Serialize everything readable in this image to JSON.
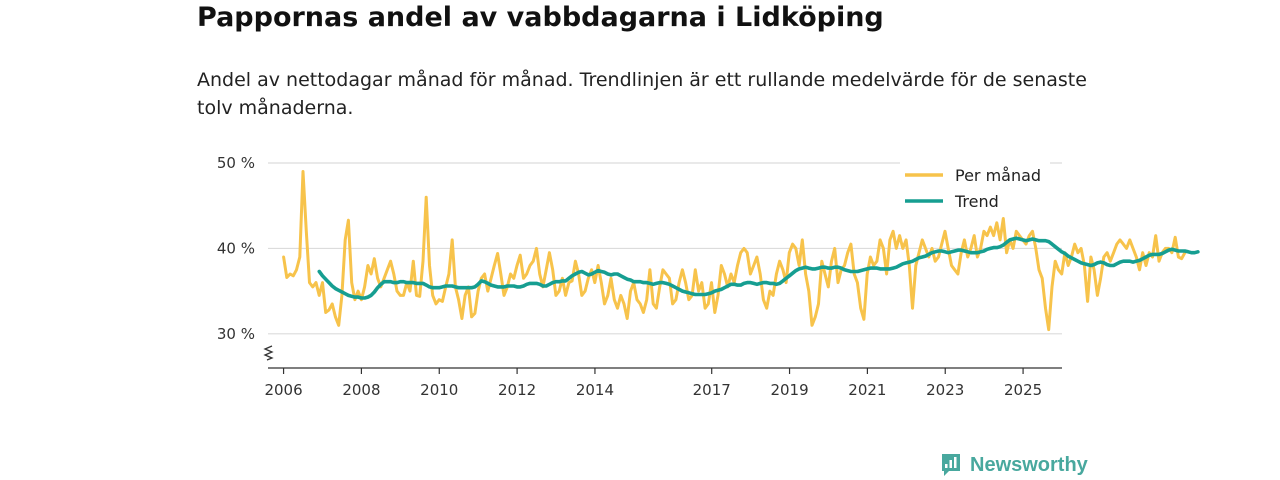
{
  "title": "Pappornas andel av vabbdagarna i Lidköping",
  "subtitle": "Andel av nettodagar månad för månad. Trendlinjen är ett rullande medelvärde för de senaste tolv månaderna.",
  "brand": {
    "name": "Newsworthy",
    "color": "#48a89e"
  },
  "colors": {
    "monthly": "#f7c34b",
    "trend": "#169e91",
    "grid": "#dcdcdc",
    "axis": "#333333"
  },
  "chart_data": {
    "type": "line",
    "title": "Pappornas andel av vabbdagarna i Lidköping",
    "xlabel": "",
    "ylabel": "",
    "xlim": [
      2005.6,
      2026.0
    ],
    "ylim": [
      26,
      50
    ],
    "y_ticks": [
      30,
      40,
      50
    ],
    "y_tick_labels": [
      "30 %",
      "40 %",
      "50 %"
    ],
    "x_ticks": [
      2006,
      2008,
      2010,
      2012,
      2014,
      2017,
      2019,
      2021,
      2023,
      2025
    ],
    "x_tick_labels": [
      "2006",
      "2008",
      "2010",
      "2012",
      "2014",
      "2017",
      "2019",
      "2021",
      "2023",
      "2025"
    ],
    "legend_position": "top-right",
    "series": [
      {
        "name": "Per månad",
        "x_start": 2006.0,
        "x_step": 0.0833,
        "values": [
          39,
          36.6,
          37,
          36.8,
          37.5,
          39,
          49,
          42,
          36,
          35.5,
          36,
          34.5,
          36,
          32.5,
          32.8,
          33.5,
          32,
          31,
          34.5,
          41,
          43.3,
          36,
          34,
          35,
          34,
          35.5,
          38,
          37,
          38.8,
          36.5,
          35.5,
          36.5,
          37.5,
          38.5,
          37,
          35,
          34.5,
          34.5,
          36,
          35,
          38.5,
          34.5,
          34.4,
          38.5,
          46,
          38,
          34.5,
          33.5,
          34,
          33.8,
          35.5,
          37,
          41,
          35.5,
          34,
          31.8,
          34.5,
          35.5,
          32,
          32.4,
          35,
          36.5,
          37,
          35,
          36.5,
          38,
          39.4,
          37,
          34.5,
          35.5,
          37,
          36.5,
          38,
          39.2,
          36.5,
          37,
          38,
          38.5,
          40,
          37,
          35.5,
          37.5,
          39.5,
          37.5,
          34.5,
          35,
          36.5,
          34.5,
          36,
          36.2,
          38.5,
          37,
          34.5,
          35,
          36.5,
          37.5,
          36,
          38,
          36,
          33.5,
          34.5,
          36.5,
          34,
          33,
          34.5,
          33.5,
          31.8,
          35,
          36,
          34,
          33.5,
          32.5,
          34,
          37.5,
          33.5,
          33,
          35.5,
          37.5,
          37,
          36.5,
          33.5,
          34,
          36,
          37.5,
          36,
          34,
          34.5,
          37.5,
          35,
          36,
          33,
          33.5,
          36,
          32.5,
          34.5,
          38,
          37,
          35.5,
          37,
          36,
          38,
          39.5,
          40,
          39.5,
          37,
          38,
          39,
          37,
          34,
          33,
          35,
          34.5,
          37,
          38.5,
          37.5,
          36,
          39.5,
          40.5,
          40,
          38,
          41,
          37,
          35,
          31,
          32,
          33.5,
          38.5,
          37,
          35.5,
          38.5,
          40,
          36,
          37.5,
          38,
          39.5,
          40.5,
          37,
          36,
          33,
          31.7,
          37,
          39,
          38,
          38.5,
          41,
          40,
          37,
          41,
          42,
          40,
          41.5,
          40,
          41,
          38,
          33,
          38,
          39.5,
          41,
          40,
          39,
          40,
          38.5,
          39,
          40.5,
          42,
          40,
          38,
          37.5,
          37,
          39.5,
          41,
          39,
          40,
          41.5,
          39,
          40,
          42,
          41.5,
          42.5,
          41.5,
          43,
          41,
          43.5,
          39.5,
          41,
          40,
          42,
          41.5,
          41,
          40.5,
          41.5,
          42,
          40,
          37.5,
          36.5,
          33,
          30.5,
          35.5,
          38.5,
          37.5,
          37,
          39.5,
          38,
          39,
          40.5,
          39.5,
          40,
          38,
          33.8,
          39,
          37.5,
          34.5,
          36.5,
          39,
          39.5,
          38.5,
          39.5,
          40.5,
          41,
          40.5,
          40,
          41,
          40,
          39,
          37.5,
          39.5,
          38,
          39.5,
          39,
          41.5,
          38.5,
          39.5,
          40,
          40,
          39.5,
          41.3,
          39,
          38.8,
          39.5
        ]
      },
      {
        "name": "Trend",
        "x_start": 2006.917,
        "x_step": 0.0833,
        "values": [
          37.3,
          36.8,
          36.4,
          36,
          35.6,
          35.3,
          35.1,
          34.9,
          34.7,
          34.5,
          34.4,
          34.3,
          34.3,
          34.2,
          34.2,
          34.3,
          34.5,
          34.9,
          35.4,
          35.8,
          36.1,
          36.1,
          36.1,
          36,
          36,
          36.1,
          36.1,
          36,
          36,
          36,
          35.9,
          35.9,
          35.9,
          35.7,
          35.5,
          35.4,
          35.4,
          35.4,
          35.5,
          35.6,
          35.6,
          35.6,
          35.5,
          35.4,
          35.4,
          35.4,
          35.4,
          35.4,
          35.5,
          35.8,
          36.2,
          36.1,
          35.9,
          35.7,
          35.6,
          35.5,
          35.5,
          35.5,
          35.6,
          35.6,
          35.6,
          35.5,
          35.5,
          35.6,
          35.8,
          35.9,
          35.9,
          35.9,
          35.8,
          35.6,
          35.6,
          35.8,
          36,
          36.1,
          36.1,
          36.2,
          36.2,
          36.5,
          36.8,
          37,
          37.2,
          37.3,
          37.1,
          36.9,
          37,
          37.2,
          37.4,
          37.3,
          37.2,
          37,
          36.9,
          37,
          37,
          36.8,
          36.6,
          36.4,
          36.3,
          36.1,
          36.1,
          36.1,
          36,
          36,
          35.9,
          35.8,
          35.9,
          36,
          36,
          35.9,
          35.8,
          35.6,
          35.4,
          35.2,
          35,
          34.9,
          34.8,
          34.7,
          34.6,
          34.6,
          34.6,
          34.6,
          34.7,
          34.8,
          35,
          35.1,
          35.2,
          35.4,
          35.6,
          35.8,
          35.8,
          35.7,
          35.7,
          35.9,
          36,
          36,
          35.9,
          35.8,
          35.9,
          36,
          36,
          35.9,
          35.9,
          35.8,
          35.9,
          36.2,
          36.5,
          36.8,
          37.1,
          37.4,
          37.6,
          37.7,
          37.8,
          37.7,
          37.6,
          37.6,
          37.7,
          37.8,
          37.8,
          37.7,
          37.7,
          37.8,
          37.8,
          37.7,
          37.5,
          37.4,
          37.3,
          37.3,
          37.3,
          37.4,
          37.5,
          37.6,
          37.7,
          37.7,
          37.7,
          37.6,
          37.6,
          37.6,
          37.6,
          37.7,
          37.8,
          38,
          38.2,
          38.3,
          38.4,
          38.5,
          38.7,
          38.9,
          39,
          39.1,
          39.3,
          39.5,
          39.6,
          39.7,
          39.7,
          39.6,
          39.5,
          39.6,
          39.7,
          39.8,
          39.8,
          39.7,
          39.6,
          39.5,
          39.5,
          39.5,
          39.6,
          39.7,
          39.9,
          40,
          40.1,
          40.1,
          40.2,
          40.4,
          40.7,
          41,
          41.1,
          41.2,
          41.1,
          41,
          40.9,
          41,
          41.1,
          41,
          40.9,
          40.9,
          40.9,
          40.8,
          40.5,
          40.2,
          39.9,
          39.6,
          39.4,
          39.1,
          38.9,
          38.7,
          38.5,
          38.3,
          38.2,
          38.1,
          38,
          38.1,
          38.3,
          38.4,
          38.3,
          38.1,
          38,
          38,
          38.2,
          38.4,
          38.5,
          38.5,
          38.5,
          38.4,
          38.5,
          38.6,
          38.8,
          39,
          39.2,
          39.3,
          39.3,
          39.3,
          39.4,
          39.6,
          39.8,
          39.9,
          39.8,
          39.7,
          39.7,
          39.7,
          39.6,
          39.5,
          39.5,
          39.6
        ]
      }
    ]
  }
}
